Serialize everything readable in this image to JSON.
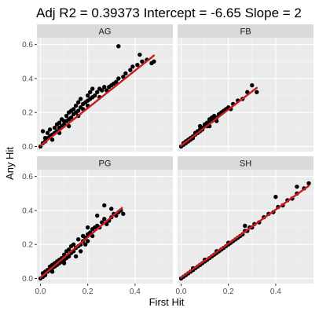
{
  "chart_data": {
    "type": "scatter",
    "title": "Adj R2 =  0.39373 Intercept = -6.65  Slope = 2",
    "xlabel": "First Hit",
    "ylabel": "Any Hit",
    "xlim": [
      -0.015,
      0.56
    ],
    "ylim": [
      -0.03,
      0.64
    ],
    "x_ticks": [
      0.0,
      0.2,
      0.4
    ],
    "y_ticks": [
      0.0,
      0.2,
      0.4,
      0.6
    ],
    "x_tick_labels": [
      "0.0",
      "0.2",
      "0.4"
    ],
    "y_tick_labels": [
      "0.0",
      "0.2",
      "0.4",
      "0.6"
    ],
    "grid": true,
    "point_color": "#000000",
    "fit_color": "#cc1a22",
    "panel_bg": "#ebebeb",
    "strip_bg": "#d9d9d9",
    "facets": [
      {
        "name": "AG",
        "fit": {
          "x": [
            0.0,
            0.48
          ],
          "y": [
            0.005,
            0.535
          ]
        },
        "points": [
          [
            0.0,
            0.0
          ],
          [
            0.01,
            0.02
          ],
          [
            0.02,
            0.03
          ],
          [
            0.01,
            0.09
          ],
          [
            0.02,
            0.05
          ],
          [
            0.03,
            0.05
          ],
          [
            0.03,
            0.08
          ],
          [
            0.04,
            0.06
          ],
          [
            0.04,
            0.1
          ],
          [
            0.05,
            0.07
          ],
          [
            0.06,
            0.08
          ],
          [
            0.06,
            0.11
          ],
          [
            0.07,
            0.09
          ],
          [
            0.07,
            0.13
          ],
          [
            0.08,
            0.11
          ],
          [
            0.08,
            0.14
          ],
          [
            0.09,
            0.12
          ],
          [
            0.09,
            0.16
          ],
          [
            0.1,
            0.13
          ],
          [
            0.1,
            0.15
          ],
          [
            0.11,
            0.15
          ],
          [
            0.11,
            0.18
          ],
          [
            0.12,
            0.16
          ],
          [
            0.12,
            0.2
          ],
          [
            0.13,
            0.17
          ],
          [
            0.13,
            0.21
          ],
          [
            0.14,
            0.19
          ],
          [
            0.14,
            0.22
          ],
          [
            0.15,
            0.2
          ],
          [
            0.15,
            0.24
          ],
          [
            0.16,
            0.21
          ],
          [
            0.16,
            0.26
          ],
          [
            0.17,
            0.23
          ],
          [
            0.17,
            0.28
          ],
          [
            0.18,
            0.25
          ],
          [
            0.18,
            0.22
          ],
          [
            0.19,
            0.26
          ],
          [
            0.2,
            0.27
          ],
          [
            0.2,
            0.3
          ],
          [
            0.21,
            0.28
          ],
          [
            0.21,
            0.32
          ],
          [
            0.22,
            0.29
          ],
          [
            0.22,
            0.34
          ],
          [
            0.23,
            0.3
          ],
          [
            0.24,
            0.32
          ],
          [
            0.25,
            0.34
          ],
          [
            0.25,
            0.29
          ],
          [
            0.26,
            0.33
          ],
          [
            0.27,
            0.35
          ],
          [
            0.28,
            0.33
          ],
          [
            0.29,
            0.35
          ],
          [
            0.3,
            0.36
          ],
          [
            0.31,
            0.37
          ],
          [
            0.32,
            0.38
          ],
          [
            0.33,
            0.4
          ],
          [
            0.35,
            0.41
          ],
          [
            0.36,
            0.43
          ],
          [
            0.38,
            0.45
          ],
          [
            0.39,
            0.47
          ],
          [
            0.41,
            0.48
          ],
          [
            0.43,
            0.5
          ],
          [
            0.45,
            0.51
          ],
          [
            0.47,
            0.49
          ],
          [
            0.48,
            0.5
          ],
          [
            0.42,
            0.54
          ],
          [
            0.33,
            0.59
          ],
          [
            0.12,
            0.12
          ],
          [
            0.16,
            0.18
          ],
          [
            0.2,
            0.24
          ],
          [
            0.05,
            0.04
          ],
          [
            0.08,
            0.08
          ]
        ]
      },
      {
        "name": "FB",
        "fit": {
          "x": [
            0.0,
            0.32
          ],
          "y": [
            0.005,
            0.345
          ]
        },
        "points": [
          [
            0.0,
            0.0
          ],
          [
            0.01,
            0.01
          ],
          [
            0.01,
            0.02
          ],
          [
            0.02,
            0.02
          ],
          [
            0.02,
            0.03
          ],
          [
            0.03,
            0.03
          ],
          [
            0.03,
            0.04
          ],
          [
            0.04,
            0.04
          ],
          [
            0.04,
            0.05
          ],
          [
            0.05,
            0.05
          ],
          [
            0.05,
            0.06
          ],
          [
            0.06,
            0.07
          ],
          [
            0.06,
            0.08
          ],
          [
            0.07,
            0.08
          ],
          [
            0.07,
            0.09
          ],
          [
            0.08,
            0.09
          ],
          [
            0.08,
            0.1
          ],
          [
            0.09,
            0.1
          ],
          [
            0.09,
            0.11
          ],
          [
            0.1,
            0.12
          ],
          [
            0.1,
            0.13
          ],
          [
            0.11,
            0.12
          ],
          [
            0.11,
            0.14
          ],
          [
            0.12,
            0.14
          ],
          [
            0.12,
            0.16
          ],
          [
            0.13,
            0.15
          ],
          [
            0.13,
            0.17
          ],
          [
            0.14,
            0.16
          ],
          [
            0.14,
            0.18
          ],
          [
            0.15,
            0.17
          ],
          [
            0.16,
            0.19
          ],
          [
            0.17,
            0.2
          ],
          [
            0.18,
            0.21
          ],
          [
            0.19,
            0.22
          ],
          [
            0.2,
            0.23
          ],
          [
            0.21,
            0.22
          ],
          [
            0.22,
            0.25
          ],
          [
            0.24,
            0.27
          ],
          [
            0.26,
            0.28
          ],
          [
            0.28,
            0.32
          ],
          [
            0.32,
            0.32
          ],
          [
            0.3,
            0.36
          ],
          [
            0.12,
            0.12
          ],
          [
            0.15,
            0.15
          ],
          [
            0.08,
            0.12
          ]
        ]
      },
      {
        "name": "PG",
        "fit": {
          "x": [
            0.0,
            0.345
          ],
          "y": [
            0.005,
            0.415
          ]
        },
        "points": [
          [
            0.0,
            0.0
          ],
          [
            0.01,
            0.01
          ],
          [
            0.01,
            0.03
          ],
          [
            0.02,
            0.02
          ],
          [
            0.02,
            0.04
          ],
          [
            0.03,
            0.04
          ],
          [
            0.03,
            0.05
          ],
          [
            0.04,
            0.05
          ],
          [
            0.04,
            0.07
          ],
          [
            0.05,
            0.06
          ],
          [
            0.05,
            0.08
          ],
          [
            0.06,
            0.07
          ],
          [
            0.06,
            0.09
          ],
          [
            0.07,
            0.08
          ],
          [
            0.07,
            0.1
          ],
          [
            0.08,
            0.09
          ],
          [
            0.08,
            0.11
          ],
          [
            0.09,
            0.1
          ],
          [
            0.09,
            0.12
          ],
          [
            0.1,
            0.11
          ],
          [
            0.1,
            0.14
          ],
          [
            0.11,
            0.12
          ],
          [
            0.11,
            0.16
          ],
          [
            0.12,
            0.13
          ],
          [
            0.12,
            0.17
          ],
          [
            0.13,
            0.15
          ],
          [
            0.13,
            0.19
          ],
          [
            0.14,
            0.16
          ],
          [
            0.14,
            0.2
          ],
          [
            0.15,
            0.18
          ],
          [
            0.15,
            0.13
          ],
          [
            0.16,
            0.19
          ],
          [
            0.16,
            0.23
          ],
          [
            0.17,
            0.2
          ],
          [
            0.17,
            0.16
          ],
          [
            0.18,
            0.22
          ],
          [
            0.18,
            0.25
          ],
          [
            0.19,
            0.24
          ],
          [
            0.19,
            0.2
          ],
          [
            0.2,
            0.26
          ],
          [
            0.2,
            0.22
          ],
          [
            0.21,
            0.27
          ],
          [
            0.22,
            0.29
          ],
          [
            0.22,
            0.25
          ],
          [
            0.23,
            0.3
          ],
          [
            0.24,
            0.31
          ],
          [
            0.25,
            0.3
          ],
          [
            0.26,
            0.33
          ],
          [
            0.27,
            0.35
          ],
          [
            0.28,
            0.32
          ],
          [
            0.29,
            0.34
          ],
          [
            0.3,
            0.36
          ],
          [
            0.31,
            0.38
          ],
          [
            0.32,
            0.37
          ],
          [
            0.33,
            0.39
          ],
          [
            0.35,
            0.38
          ],
          [
            0.34,
            0.4
          ],
          [
            0.27,
            0.43
          ],
          [
            0.3,
            0.41
          ],
          [
            0.2,
            0.3
          ],
          [
            0.24,
            0.37
          ],
          [
            0.1,
            0.09
          ],
          [
            0.05,
            0.04
          ]
        ]
      },
      {
        "name": "SH",
        "fit": {
          "x": [
            0.0,
            0.54
          ],
          "y": [
            0.005,
            0.545
          ]
        },
        "points": [
          [
            0.0,
            0.0
          ],
          [
            0.01,
            0.01
          ],
          [
            0.02,
            0.02
          ],
          [
            0.03,
            0.03
          ],
          [
            0.04,
            0.04
          ],
          [
            0.05,
            0.05
          ],
          [
            0.06,
            0.06
          ],
          [
            0.07,
            0.07
          ],
          [
            0.08,
            0.08
          ],
          [
            0.09,
            0.09
          ],
          [
            0.1,
            0.1
          ],
          [
            0.11,
            0.11
          ],
          [
            0.12,
            0.12
          ],
          [
            0.13,
            0.13
          ],
          [
            0.14,
            0.14
          ],
          [
            0.15,
            0.15
          ],
          [
            0.16,
            0.16
          ],
          [
            0.17,
            0.17
          ],
          [
            0.18,
            0.18
          ],
          [
            0.19,
            0.19
          ],
          [
            0.2,
            0.2
          ],
          [
            0.21,
            0.21
          ],
          [
            0.22,
            0.22
          ],
          [
            0.23,
            0.23
          ],
          [
            0.24,
            0.24
          ],
          [
            0.25,
            0.25
          ],
          [
            0.26,
            0.26
          ],
          [
            0.27,
            0.28
          ],
          [
            0.28,
            0.28
          ],
          [
            0.29,
            0.3
          ],
          [
            0.3,
            0.3
          ],
          [
            0.31,
            0.32
          ],
          [
            0.33,
            0.33
          ],
          [
            0.35,
            0.36
          ],
          [
            0.37,
            0.38
          ],
          [
            0.39,
            0.39
          ],
          [
            0.41,
            0.42
          ],
          [
            0.43,
            0.43
          ],
          [
            0.45,
            0.46
          ],
          [
            0.47,
            0.47
          ],
          [
            0.49,
            0.5
          ],
          [
            0.52,
            0.53
          ],
          [
            0.54,
            0.56
          ],
          [
            0.49,
            0.54
          ],
          [
            0.4,
            0.48
          ],
          [
            0.27,
            0.31
          ],
          [
            0.05,
            0.06
          ],
          [
            0.1,
            0.11
          ],
          [
            0.15,
            0.16
          ],
          [
            0.2,
            0.21
          ]
        ]
      }
    ]
  }
}
